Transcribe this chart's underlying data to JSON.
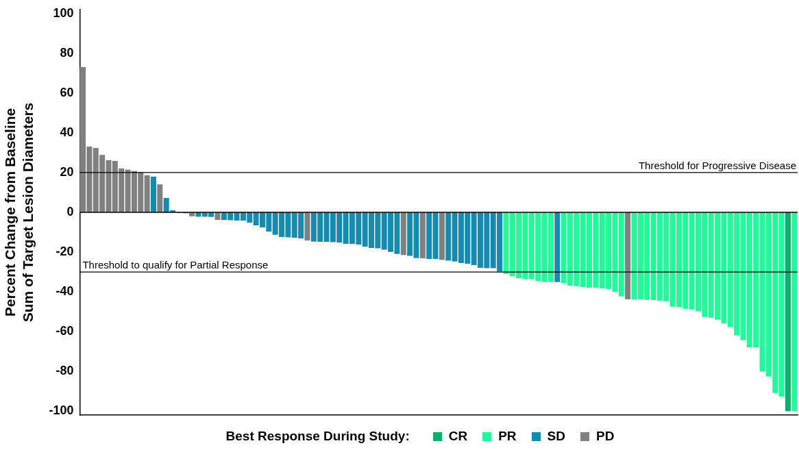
{
  "chart_data": {
    "type": "bar",
    "ylabel": "Percent Change from Baseline\nSum of Target Lesion Diameters",
    "legend_title": "Best Response During Study:",
    "legend": "bottom",
    "tick_labels": "y",
    "grid": false,
    "categories": [
      null,
      null,
      null,
      null,
      null,
      null,
      null,
      null,
      null,
      null,
      null,
      null,
      null,
      null,
      null,
      null,
      null,
      null,
      null,
      null,
      null,
      null,
      null,
      null,
      null,
      null,
      null,
      null,
      null,
      null,
      null,
      null,
      null,
      null,
      null,
      null,
      null,
      null,
      null,
      null,
      null,
      null,
      null,
      null,
      null,
      null,
      null,
      null,
      null,
      null,
      null,
      null,
      null,
      null,
      null,
      null,
      null,
      null,
      null,
      null,
      null,
      null,
      null,
      null,
      null,
      null,
      null,
      null,
      null,
      null,
      null,
      null,
      null,
      null,
      null,
      null,
      null,
      null,
      null,
      null,
      null,
      null,
      null,
      null,
      null,
      null,
      null,
      null,
      null,
      null,
      null,
      null,
      null,
      null,
      null,
      null,
      null,
      null,
      null,
      null,
      null,
      null,
      null,
      null,
      null,
      null,
      null,
      null,
      null,
      null,
      null,
      null
    ],
    "series": [
      {
        "name": "CR",
        "color": "#0bb06a",
        "values": [
          null,
          null,
          null,
          null,
          null,
          null,
          null,
          null,
          null,
          null,
          null,
          null,
          null,
          null,
          null,
          null,
          null,
          null,
          null,
          null,
          null,
          null,
          null,
          null,
          null,
          null,
          null,
          null,
          null,
          null,
          null,
          null,
          null,
          null,
          null,
          null,
          null,
          null,
          null,
          null,
          null,
          null,
          null,
          null,
          null,
          null,
          null,
          null,
          null,
          null,
          null,
          null,
          null,
          null,
          null,
          null,
          null,
          null,
          null,
          null,
          null,
          null,
          null,
          null,
          null,
          null,
          null,
          null,
          null,
          null,
          null,
          null,
          null,
          null,
          null,
          null,
          null,
          null,
          null,
          null,
          null,
          null,
          null,
          null,
          null,
          null,
          null,
          null,
          null,
          null,
          null,
          null,
          null,
          null,
          null,
          null,
          null,
          null,
          null,
          null,
          null,
          null,
          null,
          null,
          null,
          null,
          null,
          null,
          null,
          null,
          -100,
          null
        ]
      },
      {
        "name": "PR",
        "color": "#22f99a",
        "values": [
          null,
          null,
          null,
          null,
          null,
          null,
          null,
          null,
          null,
          null,
          null,
          null,
          null,
          null,
          null,
          null,
          null,
          null,
          null,
          null,
          null,
          null,
          null,
          null,
          null,
          null,
          null,
          null,
          null,
          null,
          null,
          null,
          null,
          null,
          null,
          null,
          null,
          null,
          null,
          null,
          null,
          null,
          null,
          null,
          null,
          null,
          null,
          null,
          null,
          null,
          null,
          null,
          null,
          null,
          null,
          null,
          null,
          null,
          null,
          null,
          null,
          null,
          null,
          null,
          null,
          null,
          -31.1,
          -32.2,
          -33.2,
          -33.6,
          -33.6,
          -34.6,
          -35,
          -35,
          null,
          -35.6,
          -36.9,
          -37.1,
          -37.5,
          -37.9,
          -38,
          -38.2,
          -38.5,
          -40,
          -42.3,
          null,
          -43.9,
          -43.9,
          -44,
          -44.1,
          -44.4,
          -44.7,
          -47.4,
          -47.7,
          -48.5,
          -48.8,
          -49.8,
          -52.6,
          -53.1,
          -54,
          -55.9,
          -57.7,
          -61.9,
          -64.3,
          -67.8,
          -68,
          -80.1,
          -82.6,
          -90.8,
          -92.7,
          null,
          -100
        ]
      },
      {
        "name": "SD",
        "color": "#168bb0",
        "values": [
          null,
          null,
          null,
          null,
          null,
          null,
          null,
          null,
          null,
          null,
          null,
          18,
          null,
          7.2,
          1,
          -0.3,
          -0.5,
          null,
          -2.2,
          -2.2,
          -2.3,
          null,
          -3.9,
          -4,
          -4.1,
          -4.2,
          -5.2,
          -6.5,
          -7.6,
          -9.7,
          -11.3,
          -12.4,
          -12.6,
          -12.7,
          -13.2,
          null,
          -14.7,
          -14.8,
          -14.9,
          -15,
          -15.2,
          -15.8,
          -15.8,
          -16.2,
          -17.3,
          -17.9,
          -18.1,
          -18.8,
          -19.9,
          -20.9,
          null,
          -21.9,
          -23,
          null,
          -23.4,
          -23.4,
          null,
          -24.3,
          -24.7,
          -25.5,
          -25.9,
          -26.5,
          -27.9,
          -28.1,
          -28.1,
          -29.8,
          null,
          null,
          null,
          null,
          null,
          null,
          null,
          null,
          -35,
          null,
          null,
          null,
          null,
          null,
          null,
          null,
          null,
          null,
          null,
          null,
          null,
          null,
          null,
          null,
          null,
          null,
          null,
          null,
          null,
          null,
          null,
          null,
          null,
          null,
          null,
          null,
          null,
          null,
          null,
          null,
          null,
          null,
          null,
          null,
          null,
          null
        ]
      },
      {
        "name": "PD",
        "color": "#808080",
        "values": [
          73,
          33.1,
          32.4,
          28.8,
          26.3,
          25.9,
          22.1,
          21.5,
          20.8,
          20.2,
          18.7,
          null,
          14,
          null,
          null,
          null,
          null,
          -2,
          null,
          null,
          null,
          -3.8,
          null,
          null,
          null,
          null,
          null,
          null,
          null,
          null,
          null,
          null,
          null,
          null,
          null,
          -14.2,
          null,
          null,
          null,
          null,
          null,
          null,
          null,
          null,
          null,
          null,
          null,
          null,
          null,
          null,
          -21.5,
          null,
          null,
          -23.2,
          null,
          null,
          -23.9,
          null,
          null,
          null,
          null,
          null,
          null,
          null,
          null,
          null,
          null,
          null,
          null,
          null,
          null,
          null,
          null,
          null,
          null,
          null,
          null,
          null,
          null,
          null,
          null,
          null,
          null,
          null,
          null,
          -43.7,
          null,
          null,
          null,
          null,
          null,
          null,
          null,
          null,
          null,
          null,
          null,
          null,
          null,
          null,
          null,
          null,
          null,
          null,
          null,
          null,
          null,
          null,
          null,
          null,
          null,
          null
        ]
      }
    ],
    "ylim": [
      -102,
      102
    ],
    "yticks": [
      -100,
      -80,
      -60,
      -40,
      -20,
      0,
      20,
      40,
      60,
      80,
      100
    ],
    "ref_lines": [
      {
        "axis": "y",
        "value": 20,
        "label": "Threshold for Progressive Disease"
      },
      {
        "axis": "y",
        "value": 0
      },
      {
        "axis": "y",
        "value": -30,
        "label": "Threshold to qualify for Partial Response"
      }
    ]
  }
}
